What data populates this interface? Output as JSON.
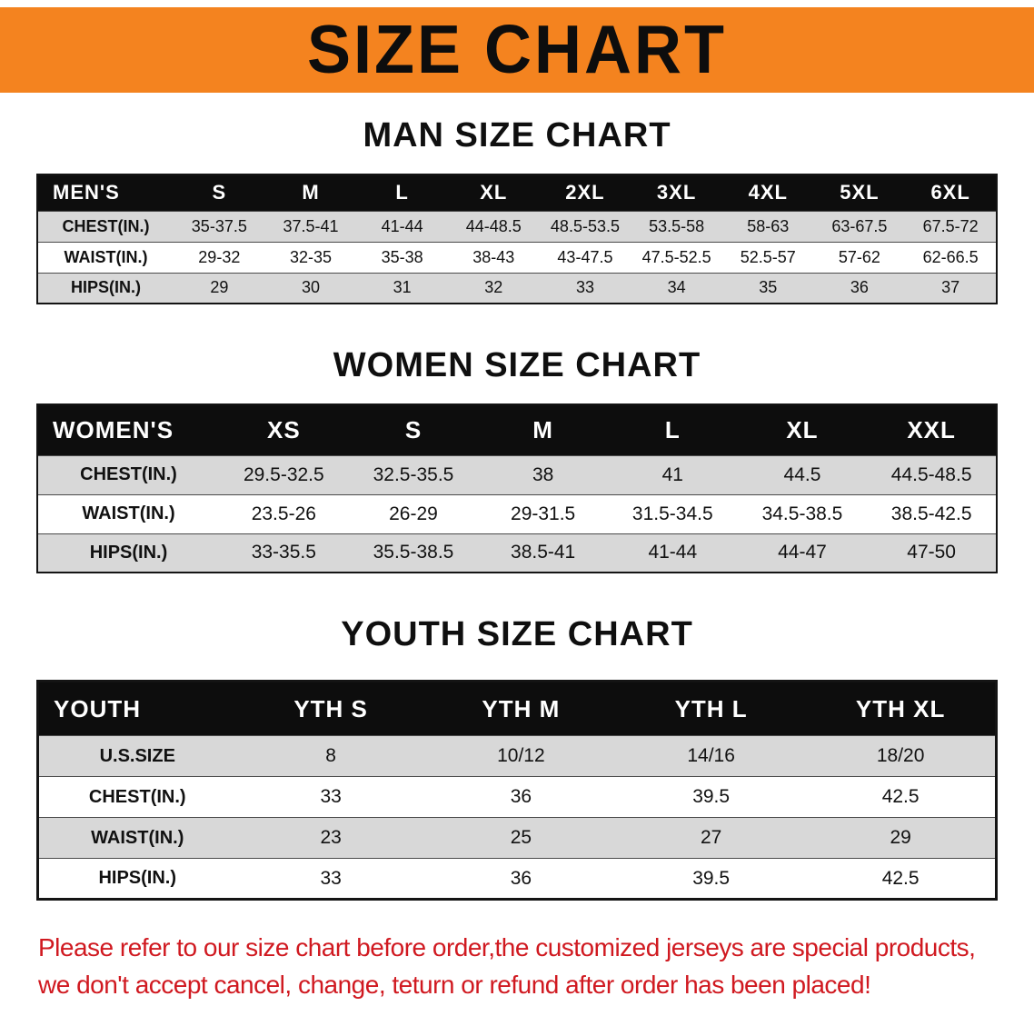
{
  "banner": {
    "title": "SIZE CHART"
  },
  "colors": {
    "banner_bg": "#f4831f",
    "header_bg": "#0d0d0d",
    "stripe_bg": "#d8d8d8",
    "disclaimer_red": "#d01920"
  },
  "sections": [
    {
      "heading": "MAN SIZE CHART",
      "table": {
        "header": [
          "MEN'S",
          "S",
          "M",
          "L",
          "XL",
          "2XL",
          "3XL",
          "4XL",
          "5XL",
          "6XL"
        ],
        "rows": [
          {
            "label": "CHEST(IN.)",
            "values": [
              "35-37.5",
              "37.5-41",
              "41-44",
              "44-48.5",
              "48.5-53.5",
              "53.5-58",
              "58-63",
              "63-67.5",
              "67.5-72"
            ]
          },
          {
            "label": "WAIST(IN.)",
            "values": [
              "29-32",
              "32-35",
              "35-38",
              "38-43",
              "43-47.5",
              "47.5-52.5",
              "52.5-57",
              "57-62",
              "62-66.5"
            ]
          },
          {
            "label": "HIPS(IN.)",
            "values": [
              "29",
              "30",
              "31",
              "32",
              "33",
              "34",
              "35",
              "36",
              "37"
            ]
          }
        ]
      }
    },
    {
      "heading": "WOMEN SIZE CHART",
      "table": {
        "header": [
          "WOMEN'S",
          "XS",
          "S",
          "M",
          "L",
          "XL",
          "XXL"
        ],
        "rows": [
          {
            "label": "CHEST(IN.)",
            "values": [
              "29.5-32.5",
              "32.5-35.5",
              "38",
              "41",
              "44.5",
              "44.5-48.5"
            ]
          },
          {
            "label": "WAIST(IN.)",
            "values": [
              "23.5-26",
              "26-29",
              "29-31.5",
              "31.5-34.5",
              "34.5-38.5",
              "38.5-42.5"
            ]
          },
          {
            "label": "HIPS(IN.)",
            "values": [
              "33-35.5",
              "35.5-38.5",
              "38.5-41",
              "41-44",
              "44-47",
              "47-50"
            ]
          }
        ]
      }
    },
    {
      "heading": "YOUTH SIZE CHART",
      "table": {
        "header": [
          "YOUTH",
          "YTH S",
          "YTH M",
          "YTH L",
          "YTH XL"
        ],
        "rows": [
          {
            "label": "U.S.SIZE",
            "values": [
              "8",
              "10/12",
              "14/16",
              "18/20"
            ]
          },
          {
            "label": "CHEST(IN.)",
            "values": [
              "33",
              "36",
              "39.5",
              "42.5"
            ]
          },
          {
            "label": "WAIST(IN.)",
            "values": [
              "23",
              "25",
              "27",
              "29"
            ]
          },
          {
            "label": "HIPS(IN.)",
            "values": [
              "33",
              "36",
              "39.5",
              "42.5"
            ]
          }
        ]
      }
    }
  ],
  "disclaimer": {
    "lines": [
      "Please refer to our size chart before order,the customized jerseys are special products,",
      "we don't accept cancel, change, teturn or refund after order has been placed!"
    ]
  }
}
